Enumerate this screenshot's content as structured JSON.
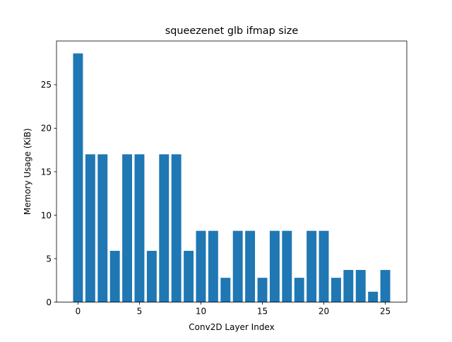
{
  "chart_data": {
    "type": "bar",
    "title": "squeezenet glb ifmap size",
    "xlabel": "Conv2D Layer Index",
    "ylabel": "Memory Usage (KiB)",
    "x": [
      0,
      1,
      2,
      3,
      4,
      5,
      6,
      7,
      8,
      9,
      10,
      11,
      12,
      13,
      14,
      15,
      16,
      17,
      18,
      19,
      20,
      21,
      22,
      23,
      24,
      25
    ],
    "values": [
      28.6,
      17.0,
      17.0,
      5.9,
      17.0,
      17.0,
      5.9,
      17.0,
      17.0,
      5.9,
      8.2,
      8.2,
      2.8,
      8.2,
      8.2,
      2.8,
      8.2,
      8.2,
      2.8,
      8.2,
      8.2,
      2.8,
      3.7,
      3.7,
      1.2,
      3.7
    ],
    "xticks": [
      0,
      5,
      10,
      15,
      20,
      25
    ],
    "yticks": [
      0,
      5,
      10,
      15,
      20,
      25
    ],
    "xlim": [
      -1.75,
      26.75
    ],
    "ylim": [
      0,
      30.03
    ],
    "bar_width": 0.8,
    "bar_color": "#1f77b4",
    "grid": false,
    "legend": "none"
  }
}
